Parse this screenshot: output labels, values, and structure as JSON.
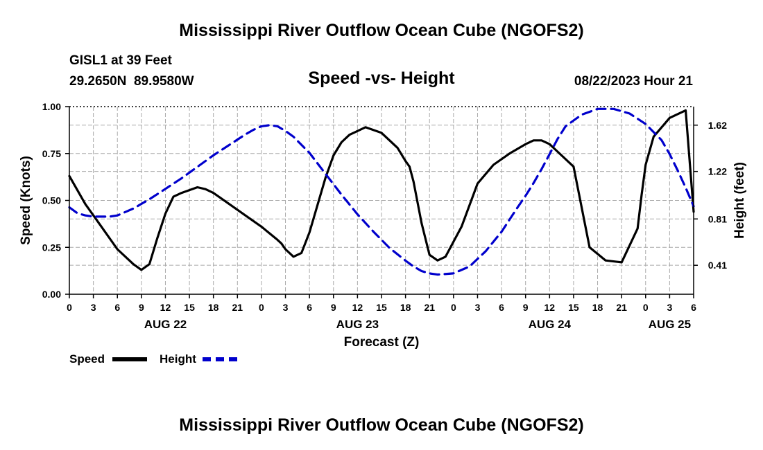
{
  "header": {
    "title": "Mississippi River Outflow Ocean Cube (NGOFS2)",
    "station": "GISL1 at 39 Feet",
    "coords": "29.2650N  89.9580W",
    "subtitle": "Speed -vs- Height",
    "datetime": "08/22/2023 Hour 21"
  },
  "footer": {
    "title": "Mississippi River Outflow Ocean Cube (NGOFS2)"
  },
  "legend": {
    "speed_label": "Speed",
    "height_label": "Height"
  },
  "colors": {
    "speed": "#000000",
    "height": "#0000cc",
    "grid": "#aaaaaa"
  },
  "chart_data": {
    "type": "line",
    "title": "Speed -vs- Height",
    "xlabel": "Forecast (Z)",
    "ylabel": "Speed (Knots)",
    "y2label": "Height (feet)",
    "x_unit": "hours from AUG 22 00Z",
    "xlim": [
      0,
      78
    ],
    "ylim": [
      0,
      1
    ],
    "y2lim": [
      0.16,
      1.78
    ],
    "grid": true,
    "legend_position": "bottom-left",
    "x_ticks": [
      {
        "x": 0,
        "label": "0"
      },
      {
        "x": 3,
        "label": "3"
      },
      {
        "x": 6,
        "label": "6"
      },
      {
        "x": 9,
        "label": "9"
      },
      {
        "x": 12,
        "label": "12"
      },
      {
        "x": 15,
        "label": "15"
      },
      {
        "x": 18,
        "label": "18"
      },
      {
        "x": 21,
        "label": "21"
      },
      {
        "x": 24,
        "label": "0"
      },
      {
        "x": 27,
        "label": "3"
      },
      {
        "x": 30,
        "label": "6"
      },
      {
        "x": 33,
        "label": "9"
      },
      {
        "x": 36,
        "label": "12"
      },
      {
        "x": 39,
        "label": "15"
      },
      {
        "x": 42,
        "label": "18"
      },
      {
        "x": 45,
        "label": "21"
      },
      {
        "x": 48,
        "label": "0"
      },
      {
        "x": 51,
        "label": "3"
      },
      {
        "x": 54,
        "label": "6"
      },
      {
        "x": 57,
        "label": "9"
      },
      {
        "x": 60,
        "label": "12"
      },
      {
        "x": 63,
        "label": "15"
      },
      {
        "x": 66,
        "label": "18"
      },
      {
        "x": 69,
        "label": "21"
      },
      {
        "x": 72,
        "label": "0"
      },
      {
        "x": 75,
        "label": "3"
      },
      {
        "x": 78,
        "label": "6"
      }
    ],
    "date_labels": [
      {
        "x": 12,
        "label": "AUG 22"
      },
      {
        "x": 36,
        "label": "AUG 23"
      },
      {
        "x": 60,
        "label": "AUG 24"
      },
      {
        "x": 75,
        "label": "AUG 25"
      }
    ],
    "y_ticks": [
      {
        "value": 0.0,
        "label": "0.00"
      },
      {
        "value": 0.25,
        "label": "0.25"
      },
      {
        "value": 0.5,
        "label": "0.50"
      },
      {
        "value": 0.75,
        "label": "0.75"
      },
      {
        "value": 1.0,
        "label": "1.00"
      }
    ],
    "y2_ticks": [
      {
        "value": 0.41,
        "label": "0.41"
      },
      {
        "value": 0.81,
        "label": "0.81"
      },
      {
        "value": 1.22,
        "label": "1.22"
      },
      {
        "value": 1.62,
        "label": "1.62"
      }
    ],
    "series": [
      {
        "name": "Speed",
        "axis": "left",
        "style": "solid",
        "x": [
          0,
          2,
          4,
          6,
          8,
          9,
          10,
          11,
          12,
          13,
          14,
          16,
          17,
          18,
          20,
          22,
          24,
          26,
          26.5,
          27,
          28,
          29,
          30,
          32,
          33,
          34,
          35,
          37,
          39,
          41,
          42,
          42.5,
          43,
          44,
          45,
          46,
          47,
          49,
          51,
          53,
          55,
          57,
          58,
          59,
          60,
          61,
          63,
          65,
          67,
          69,
          71,
          71.5,
          72,
          73,
          75,
          77,
          78
        ],
        "y": [
          0.63,
          0.48,
          0.36,
          0.24,
          0.16,
          0.13,
          0.16,
          0.3,
          0.43,
          0.52,
          0.54,
          0.57,
          0.56,
          0.54,
          0.48,
          0.42,
          0.36,
          0.29,
          0.27,
          0.24,
          0.2,
          0.22,
          0.33,
          0.62,
          0.74,
          0.81,
          0.85,
          0.89,
          0.86,
          0.78,
          0.71,
          0.68,
          0.6,
          0.38,
          0.21,
          0.18,
          0.2,
          0.36,
          0.59,
          0.69,
          0.75,
          0.8,
          0.82,
          0.82,
          0.8,
          0.76,
          0.68,
          0.25,
          0.18,
          0.17,
          0.35,
          0.53,
          0.69,
          0.84,
          0.94,
          0.98,
          0.44
        ]
      },
      {
        "name": "Height",
        "axis": "right",
        "style": "dashed",
        "x": [
          0,
          1,
          2,
          3,
          4,
          5,
          6,
          7,
          8,
          9,
          10,
          12,
          14,
          16,
          18,
          20,
          22,
          23,
          24,
          25,
          26,
          27,
          28,
          30,
          32,
          34,
          36,
          38,
          40,
          42,
          43,
          44,
          45,
          46,
          48,
          50,
          52,
          54,
          56,
          57,
          58,
          59,
          60,
          61,
          62,
          64,
          66,
          68,
          70,
          72,
          74,
          75,
          76,
          77,
          78
        ],
        "y": [
          0.91,
          0.86,
          0.84,
          0.83,
          0.83,
          0.83,
          0.84,
          0.87,
          0.9,
          0.94,
          0.98,
          1.07,
          1.16,
          1.26,
          1.36,
          1.45,
          1.54,
          1.58,
          1.61,
          1.62,
          1.61,
          1.57,
          1.52,
          1.38,
          1.2,
          1.02,
          0.85,
          0.7,
          0.56,
          0.45,
          0.4,
          0.36,
          0.34,
          0.33,
          0.34,
          0.4,
          0.53,
          0.7,
          0.91,
          1.01,
          1.12,
          1.24,
          1.37,
          1.5,
          1.61,
          1.71,
          1.76,
          1.76,
          1.72,
          1.63,
          1.49,
          1.37,
          1.23,
          1.08,
          0.92
        ]
      }
    ]
  }
}
